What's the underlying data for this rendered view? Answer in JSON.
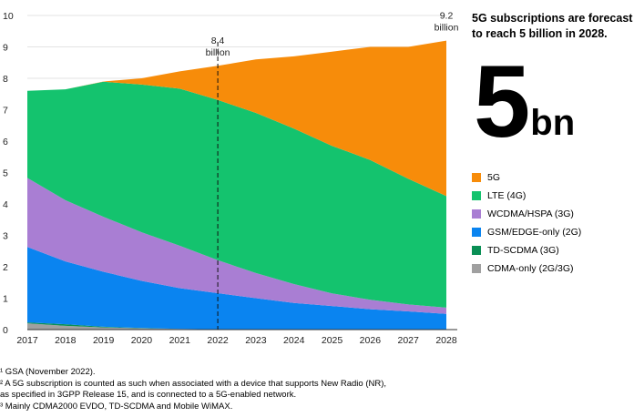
{
  "chart_data": {
    "type": "area",
    "stacked": true,
    "title": "5G subscriptions are forecast to reach 5 billion in 2028.",
    "xlabel": "",
    "ylabel": "",
    "x": [
      "2017",
      "2018",
      "2019",
      "2020",
      "2021",
      "2022",
      "2023",
      "2024",
      "2025",
      "2026",
      "2027",
      "2028"
    ],
    "ylim": [
      0,
      10
    ],
    "yticks": [
      "0",
      "1",
      "2",
      "3",
      "4",
      "5",
      "6",
      "7",
      "8",
      "9",
      "10"
    ],
    "grid": true,
    "legend_position": "right",
    "series": [
      {
        "name": "CDMA-only (2G/3G)",
        "color": "#a0a0a0",
        "values": [
          0.2,
          0.12,
          0.07,
          0.04,
          0.02,
          0.01,
          0.0,
          0.0,
          0.0,
          0.0,
          0.0,
          0.0
        ]
      },
      {
        "name": "TD-SCDMA (3G)",
        "color": "#0a8f55",
        "values": [
          0.03,
          0.05,
          0.02,
          0.01,
          0.0,
          0.0,
          0.0,
          0.0,
          0.0,
          0.0,
          0.0,
          0.0
        ]
      },
      {
        "name": "GSM/EDGE-only (2G)",
        "color": "#0a84f0",
        "values": [
          2.4,
          2.0,
          1.75,
          1.5,
          1.3,
          1.15,
          1.0,
          0.85,
          0.75,
          0.65,
          0.58,
          0.5
        ]
      },
      {
        "name": "WCDMA/HSPA (3G)",
        "color": "#a97ed3",
        "values": [
          2.2,
          1.95,
          1.75,
          1.55,
          1.35,
          1.05,
          0.8,
          0.6,
          0.4,
          0.3,
          0.22,
          0.2
        ]
      },
      {
        "name": "LTE (4G)",
        "color": "#14c36e",
        "values": [
          2.77,
          3.53,
          4.3,
          4.7,
          5.0,
          5.1,
          5.1,
          4.95,
          4.7,
          4.45,
          4.0,
          3.55
        ]
      },
      {
        "name": "5G",
        "color": "#f78c0a",
        "values": [
          0.0,
          0.0,
          0.01,
          0.2,
          0.55,
          1.09,
          1.7,
          2.3,
          3.0,
          3.6,
          4.2,
          4.95
        ]
      }
    ],
    "annotations": [
      {
        "x": "2022",
        "value_label": "8.4",
        "unit_label": "billion",
        "marker_line": true
      },
      {
        "x": "2028",
        "value_label": "9.2",
        "unit_label": "billion",
        "marker_line": false
      }
    ],
    "highlight": {
      "value": "5",
      "unit": "bn"
    },
    "footnotes": [
      "¹ GSA (November 2022).",
      "² A 5G subscription is counted as such when associated with a device that supports New Radio (NR),",
      "as specified in 3GPP Release 15, and is connected to a 5G-enabled network.",
      "³ Mainly CDMA2000 EVDO, TD-SCDMA and Mobile WiMAX."
    ]
  }
}
